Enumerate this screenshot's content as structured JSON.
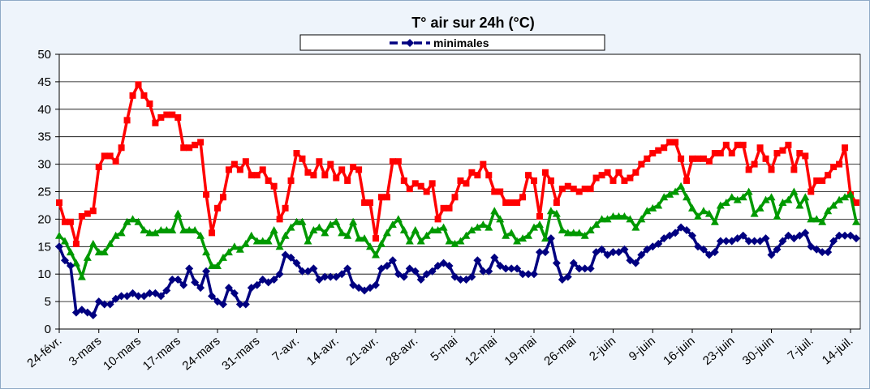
{
  "chart_data": {
    "type": "line",
    "title": "T° air sur 24h (°C)",
    "categories": [
      "24-févr.",
      null,
      null,
      null,
      null,
      null,
      null,
      "3-mars",
      null,
      null,
      null,
      null,
      null,
      null,
      "10-mars",
      null,
      null,
      null,
      null,
      null,
      null,
      "17-mars",
      null,
      null,
      null,
      null,
      null,
      null,
      "24-mars",
      null,
      null,
      null,
      null,
      null,
      null,
      "31-mars",
      null,
      null,
      null,
      null,
      null,
      null,
      "7-avr.",
      null,
      null,
      null,
      null,
      null,
      null,
      "14-avr.",
      null,
      null,
      null,
      null,
      null,
      null,
      "21-avr.",
      null,
      null,
      null,
      null,
      null,
      null,
      "28-avr.",
      null,
      null,
      null,
      null,
      null,
      null,
      "5-mai",
      null,
      null,
      null,
      null,
      null,
      null,
      "12-mai",
      null,
      null,
      null,
      null,
      null,
      null,
      "19-mai",
      null,
      null,
      null,
      null,
      null,
      null,
      "26-mai",
      null,
      null,
      null,
      null,
      null,
      null,
      "2-juin",
      null,
      null,
      null,
      null,
      null,
      null,
      "9-juin",
      null,
      null,
      null,
      null,
      null,
      null,
      "16-juin",
      null,
      null,
      null,
      null,
      null,
      null,
      "23-juin",
      null,
      null,
      null,
      null,
      null,
      null,
      "30-juin",
      null,
      null,
      null,
      null,
      null,
      null,
      "7-juil.",
      null,
      null,
      null,
      null,
      null,
      null,
      "14-juil.",
      null
    ],
    "series": [
      {
        "color": "#ff0000",
        "marker": "square",
        "values": [
          23,
          19.5,
          19.5,
          15.5,
          20.5,
          21,
          21.5,
          29.5,
          31.5,
          31.5,
          30.5,
          33,
          38,
          42.5,
          44.5,
          42.5,
          41,
          37.5,
          38.5,
          39,
          39,
          38.5,
          33,
          33,
          33.5,
          34,
          24.5,
          17.5,
          22,
          24,
          29,
          30,
          29,
          30.5,
          28,
          28,
          29,
          27,
          26,
          20,
          22,
          27,
          32,
          31,
          28.5,
          28,
          30.5,
          28,
          30,
          27.5,
          29,
          27,
          29.5,
          29,
          23,
          23,
          16.5,
          24,
          24,
          30.5,
          30.5,
          27,
          25.5,
          26.5,
          26,
          25,
          26.5,
          20,
          22,
          22,
          24,
          27,
          26.5,
          28.5,
          28,
          30,
          28,
          25,
          25,
          23,
          23,
          23,
          24,
          28,
          27,
          20.5,
          28.5,
          27,
          23,
          25.5,
          26,
          25.5,
          25,
          25.5,
          25.5,
          27.5,
          28,
          28.5,
          27,
          28.5,
          27,
          27.5,
          28.5,
          30,
          31,
          32,
          32.5,
          33,
          34,
          34,
          31,
          27,
          31,
          31,
          31,
          30.5,
          32,
          32,
          33.5,
          32,
          33.5,
          33.5,
          29,
          30,
          33,
          31,
          29,
          32,
          32.5,
          33.5,
          29,
          32,
          31.5,
          25,
          27,
          27,
          28,
          29.5,
          30,
          33,
          24.5,
          23
        ]
      },
      {
        "color": "#009900",
        "marker": "triangle",
        "values": [
          17,
          16,
          14,
          12,
          9.5,
          13,
          15.5,
          14,
          14,
          15.5,
          17,
          17.5,
          19.5,
          20,
          19.5,
          18,
          17.5,
          17.5,
          18,
          18,
          18,
          21,
          18,
          18,
          18,
          17,
          14,
          11.5,
          11.5,
          13,
          14,
          15,
          14.5,
          15.5,
          17,
          16,
          16,
          16,
          18,
          15,
          17,
          18.5,
          19.5,
          19.5,
          16,
          18,
          18.5,
          17.5,
          19,
          19.5,
          17.5,
          17,
          19.5,
          16.5,
          16.5,
          15,
          13.5,
          15.5,
          17.5,
          19,
          20,
          18,
          16,
          18,
          16,
          17,
          18,
          18,
          18.5,
          16,
          15.5,
          16,
          17,
          18,
          18.5,
          19,
          18.5,
          21.5,
          20,
          17,
          17.5,
          16,
          16.5,
          17,
          18.5,
          19,
          16.5,
          21.5,
          21,
          18,
          17.5,
          17.5,
          17.5,
          17,
          18,
          19,
          20,
          20,
          20.5,
          20.5,
          20.5,
          20,
          18.5,
          20,
          21.5,
          22,
          22.5,
          24,
          24.5,
          25,
          26,
          24,
          22,
          20.5,
          21.5,
          21,
          19.5,
          22.5,
          23,
          24,
          23.5,
          24,
          25,
          21,
          22,
          23.5,
          24,
          20.5,
          23,
          23.5,
          25,
          22.5,
          24,
          20,
          20,
          19.5,
          21.5,
          22.5,
          23.5,
          24,
          24.5,
          19.5
        ]
      },
      {
        "name": "minimales",
        "color": "#000080",
        "marker": "diamond",
        "values": [
          15,
          12.5,
          11.5,
          3,
          3.5,
          3,
          2.5,
          5,
          4.5,
          4.5,
          5.5,
          6,
          6,
          6.5,
          6,
          6,
          6.5,
          6.5,
          6,
          7,
          9,
          9,
          8,
          11,
          8.5,
          7.5,
          10.5,
          6,
          5,
          4.5,
          7.5,
          6.5,
          4.5,
          4.5,
          7.5,
          8,
          9,
          8.5,
          9,
          10,
          13.5,
          13,
          12,
          10.5,
          10.5,
          11,
          9,
          9.5,
          9.5,
          9.5,
          10,
          11,
          8,
          7.5,
          7,
          7.5,
          8,
          11,
          11.5,
          12.5,
          10,
          9.5,
          11,
          10.5,
          9,
          10,
          10.5,
          11.5,
          12,
          11.5,
          9.5,
          9,
          9,
          9.5,
          12.5,
          10.5,
          10.5,
          13,
          11.5,
          11,
          11,
          11,
          10,
          10,
          10,
          14,
          14,
          16.5,
          12,
          9,
          9.5,
          12,
          11,
          11,
          11,
          14,
          14.5,
          13.5,
          14,
          14,
          14.5,
          12.5,
          12,
          13.5,
          14.5,
          15,
          15.5,
          16.5,
          17,
          17.5,
          18.5,
          18,
          17,
          15,
          14.5,
          13.5,
          14,
          16,
          16,
          16,
          16.5,
          17,
          16,
          16,
          16,
          16.5,
          13.5,
          14.5,
          16,
          17,
          16.5,
          17,
          17.5,
          15,
          14.5,
          14,
          14,
          16,
          17,
          17,
          17,
          16.5
        ]
      }
    ],
    "ylim": [
      0,
      50
    ],
    "yticks": [
      0,
      5,
      10,
      15,
      20,
      25,
      30,
      35,
      40,
      45,
      50
    ],
    "grid": true
  }
}
